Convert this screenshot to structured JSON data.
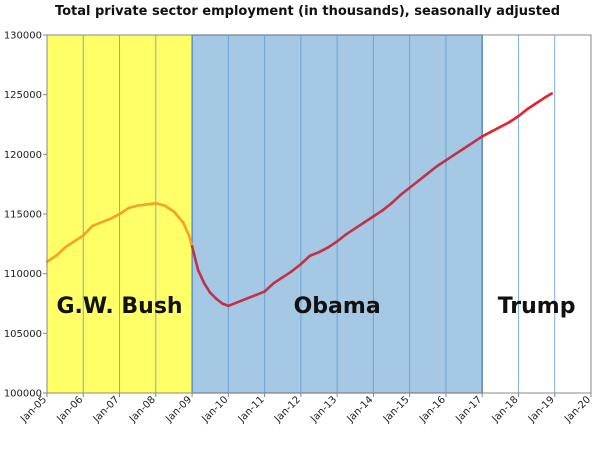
{
  "chart_data": {
    "type": "area",
    "title": "Total private sector employment (in thousands), seasonally adjusted",
    "xlabel": "",
    "ylabel": "",
    "ylim": [
      100000,
      130000
    ],
    "xlim": [
      "2005-01",
      "2020-01"
    ],
    "grid": true,
    "y_ticks": [
      "100000",
      "105000",
      "110000",
      "115000",
      "120000",
      "125000",
      "130000"
    ],
    "x_ticks": [
      "Jan-05",
      "Jan-06",
      "Jan-07",
      "Jan-08",
      "Jan-09",
      "Jan-10",
      "Jan-11",
      "Jan-12",
      "Jan-13",
      "Jan-14",
      "Jan-15",
      "Jan-16",
      "Jan-17",
      "Jan-18",
      "Jan-19",
      "Jan-20"
    ],
    "eras": [
      {
        "label": "G.W. Bush",
        "start": "2005-01",
        "end": "2009-01",
        "color": "#ffff66"
      },
      {
        "label": "Obama",
        "start": "2009-01",
        "end": "2017-01",
        "color": "#a5c8e4"
      },
      {
        "label": "Trump",
        "start": "2017-01",
        "end": "2020-01",
        "color": "#ffffff"
      }
    ],
    "series": [
      {
        "color_bush": "#f7a128",
        "color_obama": "#c0324a",
        "color_trump": "#e8202a",
        "points": [
          [
            "2005-01",
            111000
          ],
          [
            "2005-04",
            111500
          ],
          [
            "2005-07",
            112200
          ],
          [
            "2005-10",
            112700
          ],
          [
            "2006-01",
            113200
          ],
          [
            "2006-04",
            114000
          ],
          [
            "2006-07",
            114300
          ],
          [
            "2006-10",
            114600
          ],
          [
            "2007-01",
            115000
          ],
          [
            "2007-04",
            115500
          ],
          [
            "2007-07",
            115700
          ],
          [
            "2007-10",
            115800
          ],
          [
            "2008-01",
            115900
          ],
          [
            "2008-04",
            115700
          ],
          [
            "2008-07",
            115200
          ],
          [
            "2008-10",
            114300
          ],
          [
            "2008-12",
            113200
          ],
          [
            "2009-01",
            112300
          ],
          [
            "2009-03",
            110300
          ],
          [
            "2009-05",
            109200
          ],
          [
            "2009-07",
            108400
          ],
          [
            "2009-09",
            107900
          ],
          [
            "2009-11",
            107500
          ],
          [
            "2010-01",
            107300
          ],
          [
            "2010-04",
            107600
          ],
          [
            "2010-07",
            107900
          ],
          [
            "2010-10",
            108200
          ],
          [
            "2011-01",
            108500
          ],
          [
            "2011-04",
            109200
          ],
          [
            "2011-07",
            109700
          ],
          [
            "2011-10",
            110200
          ],
          [
            "2012-01",
            110800
          ],
          [
            "2012-04",
            111500
          ],
          [
            "2012-07",
            111800
          ],
          [
            "2012-10",
            112200
          ],
          [
            "2013-01",
            112700
          ],
          [
            "2013-04",
            113300
          ],
          [
            "2013-07",
            113800
          ],
          [
            "2013-10",
            114300
          ],
          [
            "2014-01",
            114800
          ],
          [
            "2014-04",
            115300
          ],
          [
            "2014-07",
            115900
          ],
          [
            "2014-10",
            116600
          ],
          [
            "2015-01",
            117200
          ],
          [
            "2015-04",
            117800
          ],
          [
            "2015-07",
            118400
          ],
          [
            "2015-10",
            119000
          ],
          [
            "2016-01",
            119500
          ],
          [
            "2016-04",
            120000
          ],
          [
            "2016-07",
            120500
          ],
          [
            "2016-10",
            121000
          ],
          [
            "2017-01",
            121500
          ],
          [
            "2017-04",
            121900
          ],
          [
            "2017-07",
            122300
          ],
          [
            "2017-10",
            122700
          ],
          [
            "2018-01",
            123200
          ],
          [
            "2018-04",
            123800
          ],
          [
            "2018-07",
            124300
          ],
          [
            "2018-10",
            124800
          ],
          [
            "2018-12",
            125100
          ]
        ]
      }
    ]
  }
}
